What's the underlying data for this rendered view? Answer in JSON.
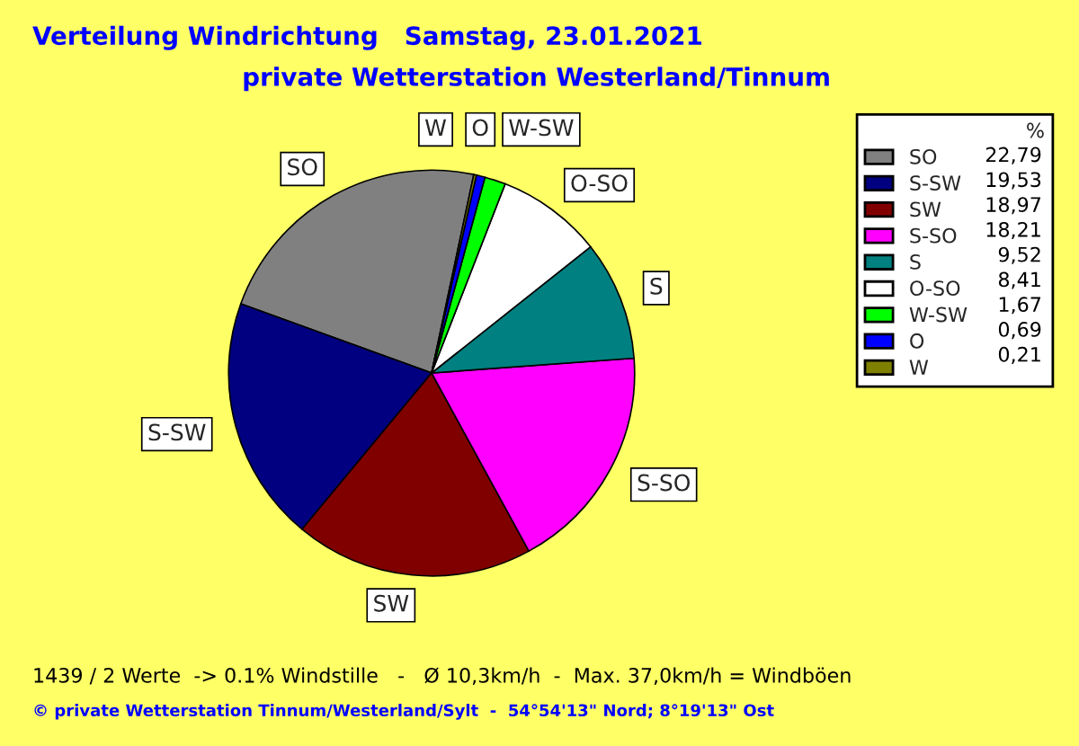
{
  "chart_data": {
    "type": "pie",
    "title": "Verteilung Windrichtung   Samstag, 23.01.2021",
    "subtitle": "private Wetterstation Westerland/Tinnum",
    "categories": [
      "SO",
      "S-SW",
      "SW",
      "S-SO",
      "S",
      "O-SO",
      "W-SW",
      "O",
      "W"
    ],
    "values": [
      22.79,
      19.53,
      18.97,
      18.21,
      9.52,
      8.41,
      1.67,
      0.69,
      0.21
    ],
    "value_labels": [
      "22,79",
      "19,53",
      "18,97",
      "18,21",
      "9,52",
      "8,41",
      "1,67",
      "0,69",
      "0,21"
    ],
    "colors": [
      "#808080",
      "#000080",
      "#800000",
      "#ff00ff",
      "#008080",
      "#ffffff",
      "#00ff00",
      "#0000ff",
      "#808000"
    ],
    "legend_title": "%",
    "legend": "right",
    "annotations": [
      "1439 / 2 Werte  -> 0.1% Windstille   -   Ø 10,3km/h  -  Max. 37,0km/h = Windböen",
      "© private Wetterstation Tinnum/Westerland/Sylt  -  54°54'13\" Nord; 8°19'13\" Ost"
    ]
  }
}
